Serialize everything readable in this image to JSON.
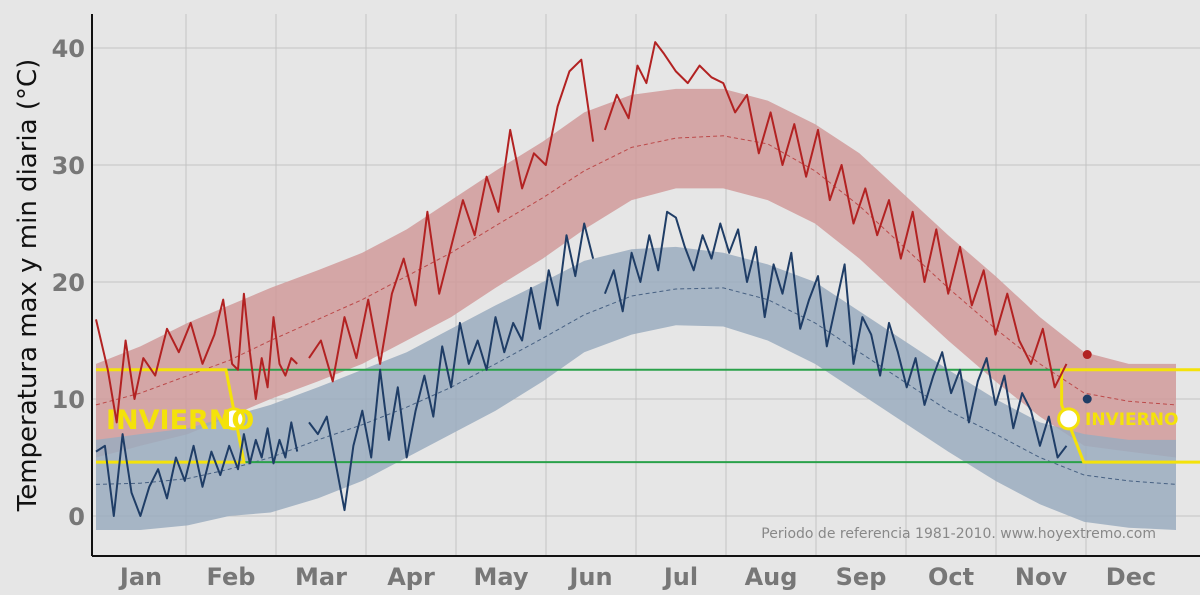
{
  "chart_data": {
    "type": "line",
    "ylabel": "Temperatura max y min diaria (°C)",
    "xlabel": "",
    "ylim": [
      -3,
      43
    ],
    "yticks": [
      0,
      10,
      20,
      30,
      40
    ],
    "months": [
      "Jan",
      "Feb",
      "Mar",
      "Apr",
      "May",
      "Jun",
      "Jul",
      "Aug",
      "Sep",
      "Oct",
      "Nov",
      "Dec"
    ],
    "grid": true,
    "credit": "Periodo de referencia 1981-2010. www.hoyextremo.com",
    "colors": {
      "max_line": "#b22222",
      "max_band": "#d09a9a",
      "min_line": "#1f3d66",
      "min_band": "#9aabbe",
      "threshold": "#2aa14a",
      "season": "#f4e20a"
    },
    "thresholds": [
      12.5,
      4.6
    ],
    "seasons": [
      {
        "label": "INVIERNO",
        "start_day": 0,
        "end_day": 50,
        "marker_value": 8.3
      },
      {
        "label": "INVIERNO",
        "start_day": 325,
        "end_day": 365,
        "marker_value": 8.3
      }
    ],
    "normals": {
      "day": [
        0,
        15,
        31,
        45,
        59,
        75,
        90,
        105,
        120,
        135,
        151,
        165,
        181,
        196,
        212,
        227,
        243,
        258,
        273,
        288,
        304,
        319,
        334,
        349,
        365
      ],
      "max_mean": [
        9.5,
        10.5,
        12.0,
        13.3,
        15.0,
        16.8,
        18.5,
        20.5,
        22.5,
        24.8,
        27.2,
        29.5,
        31.5,
        32.3,
        32.5,
        31.8,
        29.5,
        26.5,
        23.0,
        19.5,
        16.0,
        13.0,
        10.5,
        9.8,
        9.5
      ],
      "max_lo": [
        5.0,
        6.0,
        7.0,
        8.5,
        10.0,
        11.5,
        13.0,
        15.0,
        17.0,
        19.5,
        22.0,
        24.5,
        27.0,
        28.0,
        28.0,
        27.0,
        25.0,
        22.0,
        18.5,
        15.0,
        11.5,
        8.5,
        6.0,
        5.5,
        5.0
      ],
      "max_hi": [
        13.0,
        14.5,
        16.5,
        18.0,
        19.5,
        21.0,
        22.5,
        24.5,
        27.0,
        29.5,
        32.0,
        34.5,
        36.0,
        36.5,
        36.5,
        35.5,
        33.5,
        31.0,
        27.5,
        24.0,
        20.5,
        17.0,
        14.0,
        13.0,
        13.0
      ],
      "min_mean": [
        2.7,
        2.8,
        3.2,
        4.0,
        5.0,
        6.5,
        7.8,
        9.3,
        11.0,
        13.0,
        15.2,
        17.2,
        18.8,
        19.4,
        19.5,
        18.5,
        16.5,
        14.0,
        11.5,
        9.0,
        7.0,
        5.0,
        3.5,
        3.0,
        2.7
      ],
      "min_lo": [
        -1.2,
        -1.2,
        -0.8,
        0.0,
        0.3,
        1.5,
        3.0,
        5.0,
        7.0,
        9.0,
        11.5,
        14.0,
        15.5,
        16.3,
        16.2,
        15.0,
        13.0,
        10.5,
        8.0,
        5.5,
        3.0,
        1.0,
        -0.5,
        -1.0,
        -1.2
      ],
      "min_hi": [
        6.5,
        7.0,
        7.5,
        8.5,
        9.5,
        11.0,
        12.5,
        14.0,
        16.0,
        18.0,
        20.0,
        21.8,
        22.8,
        23.0,
        22.5,
        21.5,
        20.0,
        17.5,
        15.0,
        12.5,
        10.0,
        8.0,
        7.0,
        6.5,
        6.5
      ]
    },
    "series": [
      {
        "segments": [
          {
            "x": [
              0,
              4,
              7,
              10,
              13,
              16,
              20,
              24,
              28,
              32,
              36,
              40,
              43,
              46,
              48,
              50,
              52,
              54,
              56,
              58,
              60,
              62,
              64,
              66,
              68
            ],
            "y": [
              16.8,
              12.5,
              8.0,
              15.0,
              10.0,
              13.5,
              12.0,
              16.0,
              14.0,
              16.5,
              13.0,
              15.5,
              18.5,
              13.0,
              12.5,
              19.0,
              14.0,
              10.0,
              13.5,
              11.0,
              17.0,
              13.0,
              12.0,
              13.5,
              13.0
            ]
          },
          {
            "x": [
              72,
              76,
              80,
              84,
              88,
              92,
              96,
              100,
              104,
              108,
              112,
              116,
              120,
              124,
              128,
              132,
              136,
              140,
              144,
              148,
              152,
              156,
              160,
              164,
              168
            ],
            "y": [
              13.5,
              15.0,
              11.5,
              17.0,
              13.5,
              18.5,
              13.0,
              19.0,
              22.0,
              18.0,
              26.0,
              19.0,
              23.0,
              27.0,
              24.0,
              29.0,
              26.0,
              33.0,
              28.0,
              31.0,
              30.0,
              35.0,
              38.0,
              39.0,
              32.0
            ]
          },
          {
            "x": [
              172,
              176,
              180,
              183,
              186,
              189,
              192,
              196,
              200,
              204,
              208,
              212,
              216,
              220,
              224,
              228,
              232,
              236,
              240,
              244,
              248,
              252,
              256,
              260,
              264,
              268,
              272,
              276,
              280,
              284,
              288,
              292,
              296,
              300,
              304,
              308,
              312,
              316,
              320,
              324,
              328
            ],
            "y": [
              33.0,
              36.0,
              34.0,
              38.5,
              37.0,
              40.5,
              39.5,
              38.0,
              37.0,
              38.5,
              37.5,
              37.0,
              34.5,
              36.0,
              31.0,
              34.5,
              30.0,
              33.5,
              29.0,
              33.0,
              27.0,
              30.0,
              25.0,
              28.0,
              24.0,
              27.0,
              22.0,
              26.0,
              20.0,
              24.5,
              19.0,
              23.0,
              18.0,
              21.0,
              15.5,
              19.0,
              15.0,
              13.0,
              16.0,
              11.0,
              13.0
            ]
          }
        ],
        "color": "#b22222"
      },
      {
        "segments": [
          {
            "x": [
              0,
              3,
              6,
              9,
              12,
              15,
              18,
              21,
              24,
              27,
              30,
              33,
              36,
              39,
              42,
              45,
              48,
              50,
              52,
              54,
              56,
              58,
              60,
              62,
              64,
              66,
              68
            ],
            "y": [
              5.5,
              6.0,
              0.0,
              7.0,
              2.0,
              0.0,
              2.5,
              4.0,
              1.5,
              5.0,
              3.0,
              6.0,
              2.5,
              5.5,
              3.5,
              6.0,
              4.0,
              7.0,
              4.5,
              6.5,
              5.0,
              7.5,
              4.5,
              6.5,
              5.0,
              8.0,
              5.5
            ]
          },
          {
            "x": [
              72,
              75,
              78,
              81,
              84,
              87,
              90,
              93,
              96,
              99,
              102,
              105,
              108,
              111,
              114,
              117,
              120,
              123,
              126,
              129,
              132,
              135,
              138,
              141,
              144,
              147,
              150,
              153,
              156,
              159,
              162,
              165,
              168
            ],
            "y": [
              8.0,
              7.0,
              8.5,
              4.5,
              0.5,
              6.0,
              9.0,
              5.0,
              12.5,
              6.5,
              11.0,
              5.0,
              9.0,
              12.0,
              8.5,
              14.5,
              11.0,
              16.5,
              13.0,
              15.0,
              12.5,
              17.0,
              14.0,
              16.5,
              15.0,
              19.5,
              16.0,
              21.0,
              18.0,
              24.0,
              20.5,
              25.0,
              22.0
            ]
          },
          {
            "x": [
              172,
              175,
              178,
              181,
              184,
              187,
              190,
              193,
              196,
              199,
              202,
              205,
              208,
              211,
              214,
              217,
              220,
              223,
              226,
              229,
              232,
              235,
              238,
              241,
              244,
              247,
              250,
              253,
              256,
              259,
              262,
              265,
              268,
              271,
              274,
              277,
              280,
              283,
              286,
              289,
              292,
              295,
              298,
              301,
              304,
              307,
              310,
              313,
              316,
              319,
              322,
              325,
              328
            ],
            "y": [
              19.0,
              21.0,
              17.5,
              22.5,
              20.0,
              24.0,
              21.0,
              26.0,
              25.5,
              23.0,
              21.0,
              24.0,
              22.0,
              25.0,
              22.5,
              24.5,
              20.0,
              23.0,
              17.0,
              21.5,
              19.0,
              22.5,
              16.0,
              18.5,
              20.5,
              14.5,
              18.0,
              21.5,
              13.0,
              17.0,
              15.5,
              12.0,
              16.5,
              14.0,
              11.0,
              13.5,
              9.5,
              12.0,
              14.0,
              10.5,
              12.5,
              8.0,
              11.5,
              13.5,
              9.5,
              12.0,
              7.5,
              10.5,
              9.0,
              6.0,
              8.5,
              5.0,
              6.0
            ]
          }
        ],
        "color": "#1f3d66"
      }
    ],
    "last_points": [
      {
        "day": 335,
        "value": 13.8,
        "color": "#b22222"
      },
      {
        "day": 335,
        "value": 10.0,
        "color": "#1f3d66"
      }
    ]
  }
}
